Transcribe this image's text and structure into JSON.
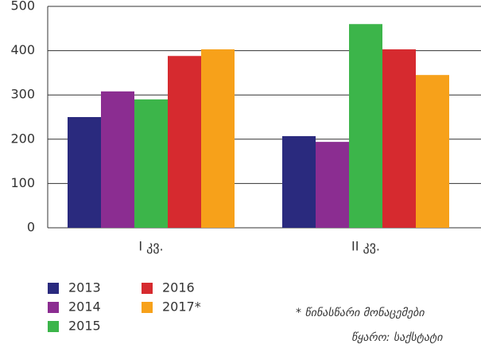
{
  "chart_data": {
    "type": "bar",
    "categories": [
      "I კვ.",
      "II კვ."
    ],
    "series": [
      {
        "name": "2013",
        "color": "#2a2a7e",
        "values": [
          250,
          207
        ]
      },
      {
        "name": "2014",
        "color": "#8b2d91",
        "values": [
          308,
          194
        ]
      },
      {
        "name": "2015",
        "color": "#3cb54a",
        "values": [
          290,
          460
        ]
      },
      {
        "name": "2016",
        "color": "#d62a2f",
        "values": [
          388,
          403
        ]
      },
      {
        "name": "2017*",
        "color": "#f7a11a",
        "values": [
          403,
          345
        ]
      }
    ],
    "ylim": [
      0,
      500
    ],
    "yticks": [
      0,
      100,
      200,
      300,
      400,
      500
    ],
    "grid": true,
    "notes": [
      "* წინასწარი მონაცემები",
      "წყარო: საქსტატი"
    ]
  }
}
